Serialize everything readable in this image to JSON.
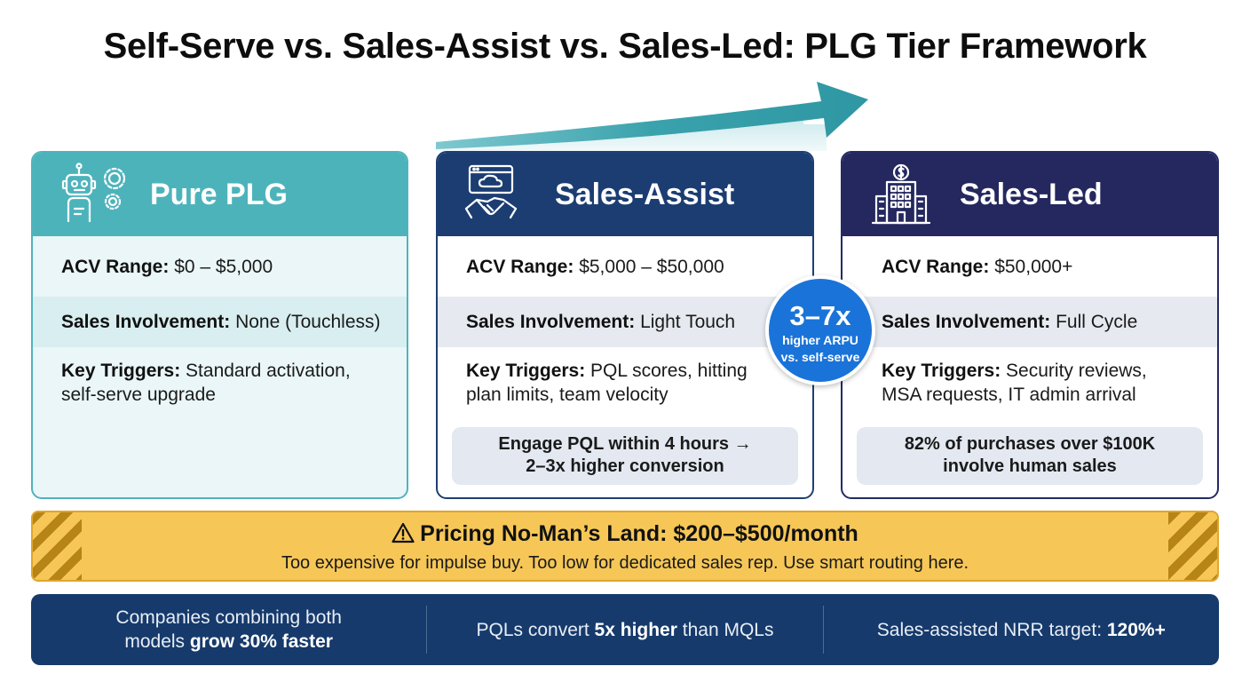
{
  "title": "Self-Serve vs. Sales-Assist vs. Sales-Led: PLG Tier Framework",
  "tiers": [
    {
      "name": "Pure PLG",
      "icon": "robot-gears-icon",
      "acv_label": "ACV Range:",
      "acv_value": " $0 – $5,000",
      "sales_label": "Sales Involvement:",
      "sales_value": " None (Touchless)",
      "triggers_label": "Key Triggers:",
      "triggers_value": " Standard activation, self-serve upgrade",
      "callout": ""
    },
    {
      "name": "Sales-Assist",
      "icon": "cloud-handshake-icon",
      "acv_label": "ACV Range:",
      "acv_value": " $5,000 – $50,000",
      "sales_label": "Sales Involvement:",
      "sales_value": " Light Touch",
      "triggers_label": "Key Triggers:",
      "triggers_value": " PQL scores, hitting plan limits, team velocity",
      "callout_line1": "Engage PQL within 4 hours →",
      "callout_line2": "2–3x higher conversion"
    },
    {
      "name": "Sales-Led",
      "icon": "enterprise-building-icon",
      "acv_label": "ACV Range:",
      "acv_value": " $50,000+",
      "sales_label": "Sales Involvement:",
      "sales_value": " Full Cycle",
      "triggers_label": "Key Triggers:",
      "triggers_value": " Security reviews, MSA requests, IT admin arrival",
      "callout_line1": "82% of purchases over $100K",
      "callout_line2": "involve human sales"
    }
  ],
  "badge": {
    "big": "3–7x",
    "line1": "higher ARPU",
    "line2": "vs. self-serve"
  },
  "warning": {
    "icon": "warning-triangle-icon",
    "title": "Pricing No-Man’s Land: $200–$500/month",
    "subtitle": "Too expensive for impulse buy. Too low for dedicated sales rep. Use smart routing here."
  },
  "footer": {
    "stat1_pre": "Companies combining both",
    "stat1_mid": "models ",
    "stat1_bold": "grow 30% faster",
    "stat2_pre": "PQLs convert ",
    "stat2_bold": "5x higher",
    "stat2_post": " than MQLs",
    "stat3_pre": "Sales-assisted NRR target: ",
    "stat3_bold": "120%+"
  },
  "colors": {
    "plg": "#4db3bb",
    "assist": "#1b3d72",
    "led": "#24285f",
    "badge": "#1a73d9",
    "warning": "#f6c757",
    "footer": "#163a6b"
  }
}
